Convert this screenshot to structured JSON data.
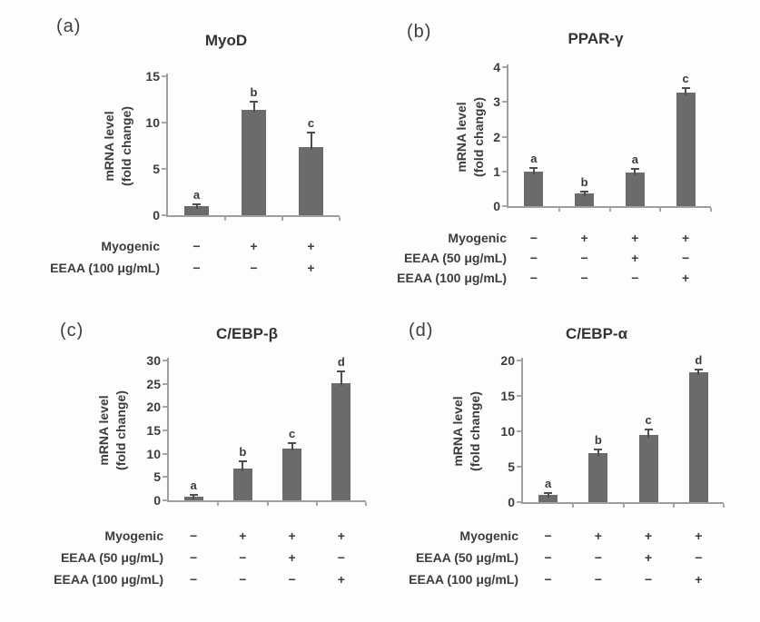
{
  "figure": {
    "background": "#fdfdfc",
    "bar_color": "#6b6b6b",
    "axis_color": "#9e9e9e",
    "text_color": "#3c3c3c"
  },
  "chart_data": [
    {
      "type": "bar",
      "panel_letter": "(a)",
      "title": "MyoD",
      "ylabel": [
        "mRNA level",
        "(fold change)"
      ],
      "ylim": [
        0,
        15
      ],
      "yticks": [
        0,
        5,
        10,
        15
      ],
      "grid": false,
      "values": [
        1.0,
        11.4,
        7.4
      ],
      "errors": [
        0.2,
        0.9,
        1.5
      ],
      "sig_labels": [
        "a",
        "b",
        "c"
      ],
      "condition_rows": [
        {
          "label": "Myogenic",
          "signs": [
            "−",
            "+",
            "+"
          ]
        },
        {
          "label": "EEAA (100 μg/mL)",
          "signs": [
            "−",
            "−",
            "+"
          ]
        }
      ]
    },
    {
      "type": "bar",
      "panel_letter": "(b)",
      "title": "PPAR-γ",
      "ylabel": [
        "mRNA level",
        "(fold change)"
      ],
      "ylim": [
        0,
        4
      ],
      "yticks": [
        0,
        1,
        2,
        3,
        4
      ],
      "grid": false,
      "values": [
        1.0,
        0.37,
        0.97,
        3.27
      ],
      "errors": [
        0.1,
        0.06,
        0.1,
        0.12
      ],
      "sig_labels": [
        "a",
        "b",
        "a",
        "c"
      ],
      "condition_rows": [
        {
          "label": "Myogenic",
          "signs": [
            "−",
            "+",
            "+",
            "+"
          ]
        },
        {
          "label": "EEAA (50 μg/mL)",
          "signs": [
            "−",
            "−",
            "+",
            "−"
          ]
        },
        {
          "label": "EEAA (100 μg/mL)",
          "signs": [
            "−",
            "−",
            "−",
            "+"
          ]
        }
      ]
    },
    {
      "type": "bar",
      "panel_letter": "(c)",
      "title": "C/EBP-β",
      "ylabel": [
        "mRNA level",
        "(fold change)"
      ],
      "ylim": [
        0,
        30
      ],
      "yticks": [
        0,
        5,
        10,
        15,
        20,
        25,
        30
      ],
      "grid": false,
      "values": [
        0.8,
        6.9,
        11.2,
        25.1
      ],
      "errors": [
        0.4,
        1.5,
        1.0,
        2.5
      ],
      "sig_labels": [
        "a",
        "b",
        "c",
        "d"
      ],
      "condition_rows": [
        {
          "label": "Myogenic",
          "signs": [
            "−",
            "+",
            "+",
            "+"
          ]
        },
        {
          "label": "EEAA (50 μg/mL)",
          "signs": [
            "−",
            "−",
            "+",
            "−"
          ]
        },
        {
          "label": "EEAA (100 μg/mL)",
          "signs": [
            "−",
            "−",
            "−",
            "+"
          ]
        }
      ]
    },
    {
      "type": "bar",
      "panel_letter": "(d)",
      "title": "C/EBP-α",
      "ylabel": [
        "mRNA level",
        "(fold change)"
      ],
      "ylim": [
        0,
        20
      ],
      "yticks": [
        0,
        5,
        10,
        15,
        20
      ],
      "grid": false,
      "values": [
        1.0,
        6.9,
        9.5,
        18.3
      ],
      "errors": [
        0.25,
        0.5,
        0.7,
        0.4
      ],
      "sig_labels": [
        "a",
        "b",
        "c",
        "d"
      ],
      "condition_rows": [
        {
          "label": "Myogenic",
          "signs": [
            "−",
            "+",
            "+",
            "+"
          ]
        },
        {
          "label": "EEAA (50 μg/mL)",
          "signs": [
            "−",
            "−",
            "+",
            "−"
          ]
        },
        {
          "label": "EEAA (100 μg/mL)",
          "signs": [
            "−",
            "−",
            "−",
            "+"
          ]
        }
      ]
    }
  ]
}
